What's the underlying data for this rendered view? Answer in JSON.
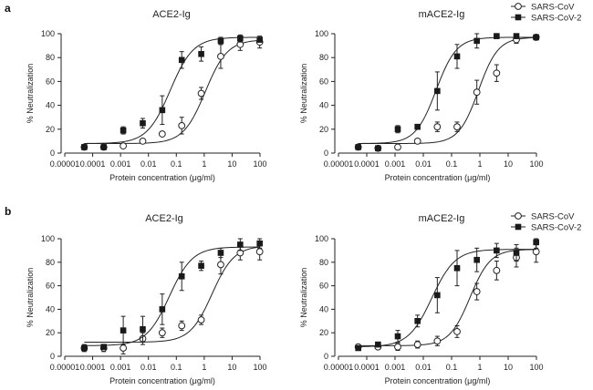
{
  "panels": [
    {
      "letter": "a",
      "legend": {
        "items": [
          "SARS-CoV",
          "SARS-CoV-2"
        ]
      }
    },
    {
      "letter": "b",
      "legend": {
        "items": [
          "SARS-CoV",
          "SARS-CoV-2"
        ]
      }
    }
  ],
  "chart_data": [
    {
      "type": "scatter",
      "panel": "a",
      "title": "ACE2-Ig",
      "xlabel": "Protein concentration (μg/ml)",
      "ylabel": "% Neutralization",
      "xscale": "log",
      "xlim": [
        1e-05,
        100
      ],
      "ylim": [
        0,
        100
      ],
      "xticks": [
        "0.00001",
        "0.0001",
        "0.001",
        "0.01",
        "0.1",
        "1",
        "10",
        "100"
      ],
      "yticks": [
        "0",
        "20",
        "40",
        "60",
        "80",
        "100"
      ],
      "x": [
        5e-05,
        0.00025,
        0.00125,
        0.00625,
        0.03125,
        0.15625,
        0.78125,
        3.90625,
        19.53125,
        97.65625
      ],
      "series": [
        {
          "name": "SARS-CoV",
          "marker": "open-circle",
          "values": [
            5,
            5,
            6,
            10,
            16,
            23,
            50,
            81,
            91,
            93
          ],
          "errors": [
            0,
            0,
            0,
            0,
            0,
            7,
            5,
            10,
            5,
            5
          ],
          "fit": {
            "bottom": 8,
            "top": 95,
            "logEC50": 0.04,
            "hill": 1.1
          }
        },
        {
          "name": "SARS-CoV-2",
          "marker": "filled-square",
          "values": [
            5,
            5,
            19,
            25,
            36,
            78,
            83,
            94,
            96,
            95
          ],
          "errors": [
            0,
            0,
            3,
            4,
            12,
            7,
            6,
            3,
            3,
            2
          ],
          "fit": {
            "bottom": 8,
            "top": 97,
            "logEC50": -1.22,
            "hill": 1.05
          }
        }
      ]
    },
    {
      "type": "scatter",
      "panel": "a",
      "title": "mACE2-Ig",
      "xlabel": "Protein concentration (μg/ml)",
      "ylabel": "% Neutralization",
      "xscale": "log",
      "xlim": [
        1e-05,
        100
      ],
      "ylim": [
        0,
        100
      ],
      "xticks": [
        "0.00001",
        "0.0001",
        "0.001",
        "0.01",
        "0.1",
        "1",
        "10",
        "100"
      ],
      "yticks": [
        "0",
        "20",
        "40",
        "60",
        "80",
        "100"
      ],
      "x": [
        5e-05,
        0.00025,
        0.00125,
        0.00625,
        0.03125,
        0.15625,
        0.78125,
        3.90625,
        19.53125,
        97.65625
      ],
      "series": [
        {
          "name": "SARS-CoV",
          "marker": "open-circle",
          "values": [
            5,
            4,
            5,
            10,
            22,
            22,
            51,
            67,
            95,
            97
          ],
          "errors": [
            0,
            0,
            0,
            0,
            4,
            4,
            10,
            7,
            3,
            2
          ],
          "fit": {
            "bottom": 8,
            "top": 97,
            "logEC50": -0.05,
            "hill": 1.25
          }
        },
        {
          "name": "SARS-CoV-2",
          "marker": "filled-square",
          "values": [
            5,
            4,
            20,
            22,
            52,
            81,
            94,
            98,
            98,
            97
          ],
          "errors": [
            0,
            0,
            3,
            0,
            16,
            10,
            6,
            2,
            0,
            2
          ],
          "fit": {
            "bottom": 8,
            "top": 97,
            "logEC50": -1.55,
            "hill": 1.2
          }
        }
      ]
    },
    {
      "type": "scatter",
      "panel": "b",
      "title": "ACE2-Ig",
      "xlabel": "Protein concentration (μg/ml)",
      "ylabel": "% Neutralization",
      "xscale": "log",
      "xlim": [
        1e-05,
        100
      ],
      "ylim": [
        0,
        100
      ],
      "xticks": [
        "0.00001",
        "0.0001",
        "0.001",
        "0.01",
        "0.1",
        "1",
        "10",
        "100"
      ],
      "yticks": [
        "0",
        "20",
        "40",
        "60",
        "80",
        "100"
      ],
      "x": [
        5e-05,
        0.00025,
        0.00125,
        0.00625,
        0.03125,
        0.15625,
        0.78125,
        3.90625,
        19.53125,
        97.65625
      ],
      "series": [
        {
          "name": "SARS-CoV",
          "marker": "open-circle",
          "values": [
            7,
            7,
            7,
            15,
            20,
            26,
            31,
            78,
            88,
            89
          ],
          "errors": [
            3,
            3,
            5,
            5,
            4,
            4,
            4,
            8,
            6,
            7
          ],
          "fit": {
            "bottom": 12,
            "top": 94,
            "logEC50": 0.28,
            "hill": 1.1
          }
        },
        {
          "name": "SARS-CoV-2",
          "marker": "filled-square",
          "values": [
            7,
            8,
            22,
            23,
            40,
            68,
            77,
            88,
            95,
            96
          ],
          "errors": [
            0,
            0,
            12,
            11,
            13,
            12,
            4,
            4,
            5,
            4
          ],
          "fit": {
            "bottom": 9,
            "top": 93,
            "logEC50": -1.25,
            "hill": 1.05
          }
        }
      ]
    },
    {
      "type": "scatter",
      "panel": "b",
      "title": "mACE2-Ig",
      "xlabel": "Protein concentration (μg/ml)",
      "ylabel": "% Neutralization",
      "xscale": "log",
      "xlim": [
        1e-05,
        100
      ],
      "ylim": [
        0,
        100
      ],
      "xticks": [
        "0.00001",
        "0.0001",
        "0.001",
        "0.01",
        "0.1",
        "1",
        "10",
        "100"
      ],
      "yticks": [
        "0",
        "20",
        "40",
        "60",
        "80",
        "100"
      ],
      "x": [
        5e-05,
        0.00025,
        0.00125,
        0.00625,
        0.03125,
        0.15625,
        0.78125,
        3.90625,
        19.53125,
        97.65625
      ],
      "series": [
        {
          "name": "SARS-CoV",
          "marker": "open-circle",
          "values": [
            8,
            8,
            8,
            10,
            13,
            21,
            55,
            73,
            84,
            89
          ],
          "errors": [
            0,
            0,
            3,
            3,
            4,
            5,
            7,
            8,
            8,
            9
          ],
          "fit": {
            "bottom": 9,
            "top": 91,
            "logEC50": -0.35,
            "hill": 1.2
          }
        },
        {
          "name": "SARS-CoV-2",
          "marker": "filled-square",
          "values": [
            7,
            10,
            17,
            30,
            52,
            75,
            82,
            90,
            88,
            97
          ],
          "errors": [
            0,
            0,
            5,
            5,
            15,
            15,
            10,
            6,
            7,
            5
          ],
          "fit": {
            "bottom": 8,
            "top": 91,
            "logEC50": -1.7,
            "hill": 1.05
          }
        }
      ]
    }
  ]
}
